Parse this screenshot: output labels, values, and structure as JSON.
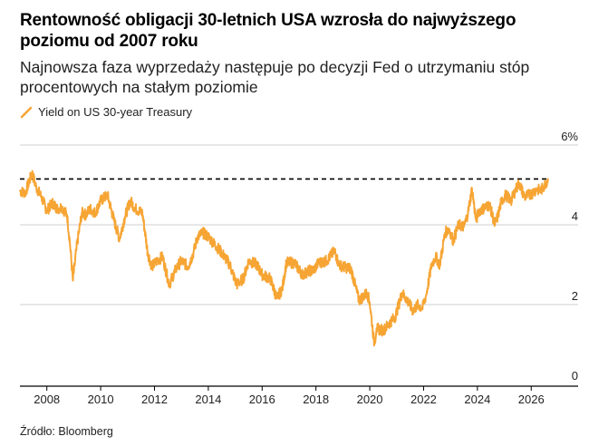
{
  "title": "Rentowność obligacji 30-letnich USA wzrosła do najwyższego poziomu od 2007 roku",
  "subtitle": "Najnowsza faza wyprzedaży następuje po decyzji Fed o utrzymaniu stóp procentowych na stałym poziomie",
  "source": "Źródło: Bloomberg",
  "colors": {
    "series": "#f6a534",
    "grid": "#cfcfcf",
    "reference": "#000000",
    "text": "#222222"
  },
  "chart_data": {
    "type": "line",
    "xlim": [
      2007.0,
      2026.8
    ],
    "ylim": [
      0,
      6
    ],
    "y_ticks": [
      {
        "value": 0,
        "label": "0"
      },
      {
        "value": 2,
        "label": "2"
      },
      {
        "value": 4,
        "label": "4"
      },
      {
        "value": 6,
        "label": "6%"
      }
    ],
    "x_ticks": [
      {
        "value": 2008,
        "label": "2008"
      },
      {
        "value": 2010,
        "label": "2010"
      },
      {
        "value": 2012,
        "label": "2012"
      },
      {
        "value": 2014,
        "label": "2014"
      },
      {
        "value": 2016,
        "label": "2016"
      },
      {
        "value": 2018,
        "label": "2018"
      },
      {
        "value": 2020,
        "label": "2020"
      },
      {
        "value": 2022,
        "label": "2022"
      },
      {
        "value": 2024,
        "label": "2024"
      },
      {
        "value": 2026,
        "label": "2026"
      }
    ],
    "grid": "horizontal",
    "legend": "top-left",
    "reference_line": {
      "value": 5.15,
      "style": "dashed"
    },
    "series": [
      {
        "name": "Yield on US 30-year Treasury",
        "x": [
          2007.0,
          2007.2,
          2007.45,
          2007.6,
          2007.8,
          2008.0,
          2008.2,
          2008.4,
          2008.55,
          2008.75,
          2008.85,
          2008.97,
          2009.1,
          2009.3,
          2009.45,
          2009.6,
          2009.8,
          2010.0,
          2010.25,
          2010.5,
          2010.7,
          2010.9,
          2011.1,
          2011.3,
          2011.55,
          2011.75,
          2011.9,
          2012.1,
          2012.3,
          2012.55,
          2012.8,
          2013.0,
          2013.25,
          2013.45,
          2013.6,
          2013.8,
          2014.0,
          2014.25,
          2014.5,
          2014.8,
          2015.05,
          2015.3,
          2015.5,
          2015.8,
          2016.0,
          2016.3,
          2016.55,
          2016.75,
          2016.9,
          2017.2,
          2017.5,
          2017.75,
          2017.9,
          2018.1,
          2018.4,
          2018.7,
          2018.85,
          2019.0,
          2019.3,
          2019.6,
          2019.75,
          2019.9,
          2020.0,
          2020.17,
          2020.25,
          2020.5,
          2020.75,
          2020.95,
          2021.2,
          2021.4,
          2021.6,
          2021.8,
          2021.95,
          2022.1,
          2022.3,
          2022.45,
          2022.6,
          2022.8,
          2022.95,
          2023.1,
          2023.3,
          2023.5,
          2023.65,
          2023.8,
          2023.95,
          2024.05,
          2024.2,
          2024.45,
          2024.65,
          2024.75,
          2024.9,
          2025.05,
          2025.25,
          2025.4,
          2025.55,
          2025.75,
          2025.9,
          2026.05,
          2026.2,
          2026.35,
          2026.5,
          2026.62
        ],
        "y": [
          4.85,
          4.8,
          5.3,
          4.95,
          4.7,
          4.35,
          4.55,
          4.4,
          4.45,
          4.25,
          3.6,
          2.6,
          3.4,
          4.3,
          4.25,
          4.4,
          4.3,
          4.6,
          4.75,
          4.1,
          3.65,
          4.2,
          4.6,
          4.4,
          4.3,
          3.3,
          2.95,
          3.1,
          3.2,
          2.5,
          2.9,
          3.1,
          2.95,
          3.3,
          3.7,
          3.8,
          3.7,
          3.5,
          3.3,
          3.0,
          2.5,
          2.65,
          3.1,
          3.0,
          2.75,
          2.65,
          2.15,
          2.4,
          3.05,
          3.05,
          2.75,
          2.85,
          2.85,
          3.05,
          3.1,
          3.35,
          3.0,
          2.95,
          2.9,
          2.1,
          2.2,
          2.3,
          2.05,
          1.0,
          1.4,
          1.35,
          1.55,
          1.7,
          2.3,
          2.1,
          1.85,
          2.0,
          1.9,
          2.25,
          3.0,
          3.2,
          3.0,
          3.8,
          3.9,
          3.6,
          4.0,
          3.95,
          4.3,
          4.9,
          4.1,
          4.35,
          4.4,
          4.5,
          4.0,
          4.2,
          4.6,
          4.75,
          4.6,
          4.85,
          5.05,
          4.7,
          4.75,
          4.8,
          4.9,
          4.85,
          5.0,
          5.15
        ]
      }
    ]
  }
}
